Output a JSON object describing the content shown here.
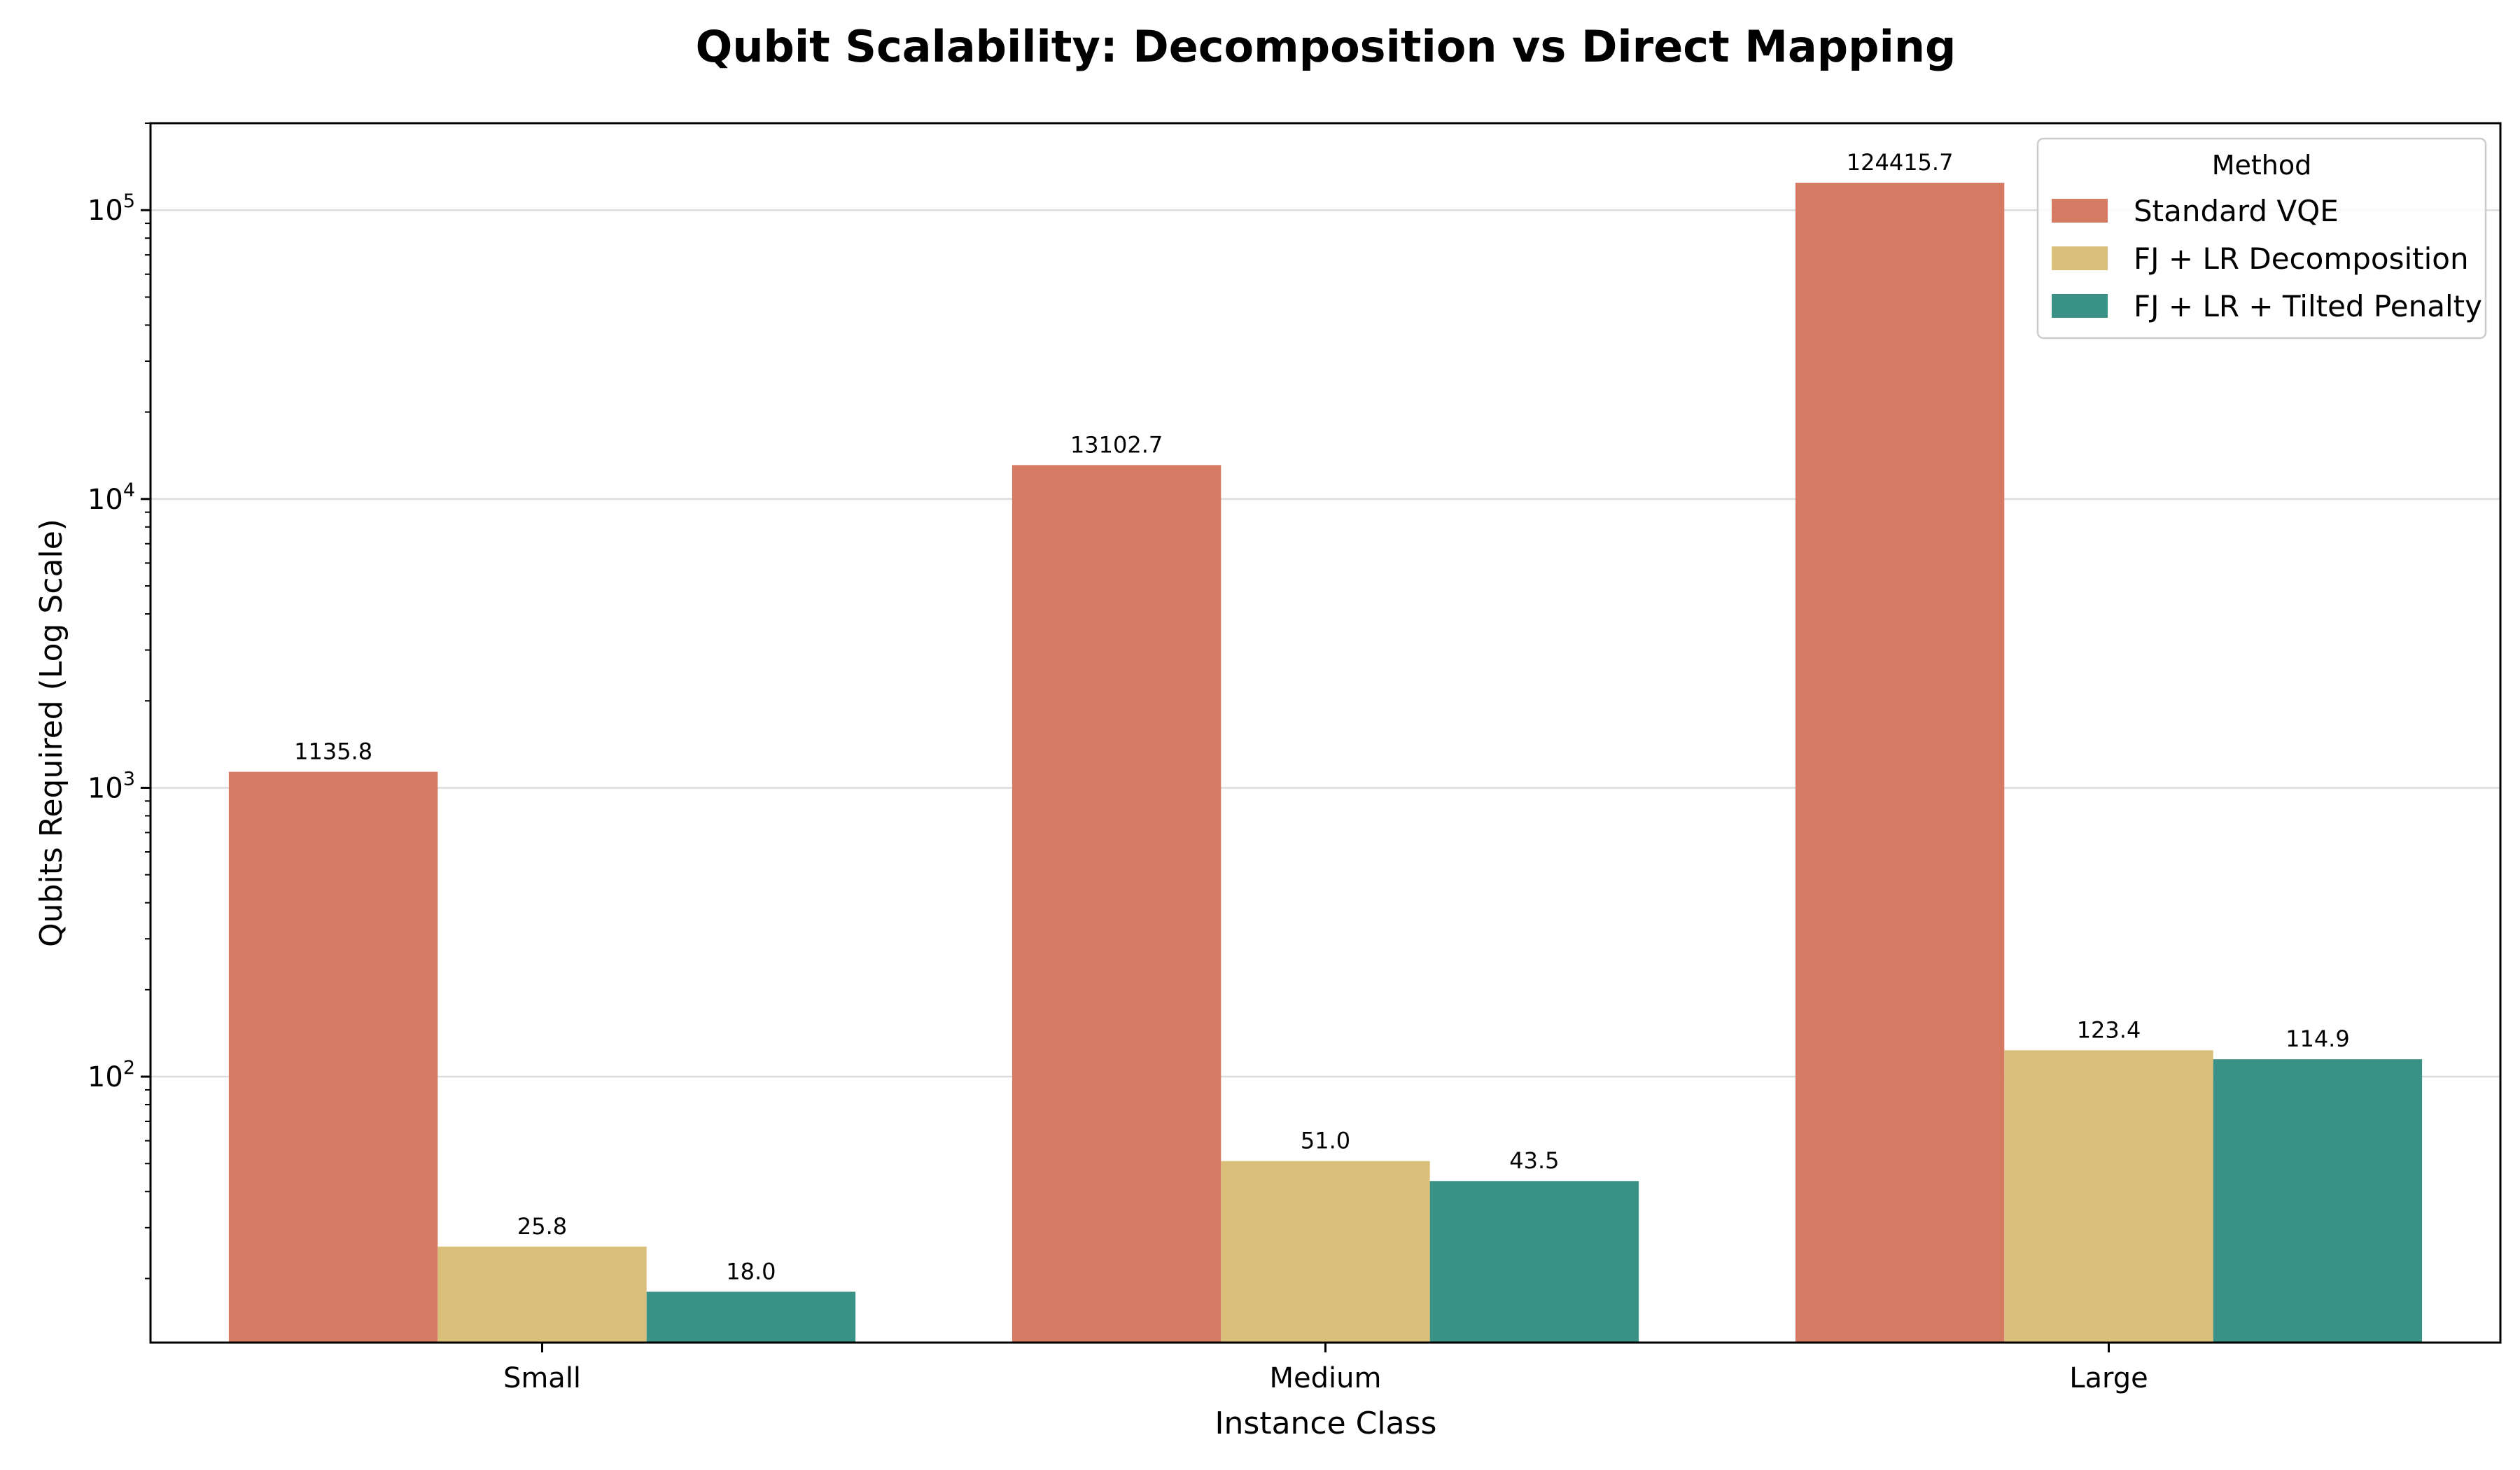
{
  "chart_data": {
    "type": "bar",
    "title": "Qubit Scalability: Decomposition vs Direct Mapping",
    "xlabel": "Instance Class",
    "ylabel": "Qubits Required (Log Scale)",
    "yscale": "log",
    "ylim": [
      12,
      200000
    ],
    "yticks": [
      {
        "value": 100,
        "base": "10",
        "exp": "2"
      },
      {
        "value": 1000,
        "base": "10",
        "exp": "3"
      },
      {
        "value": 10000,
        "base": "10",
        "exp": "4"
      },
      {
        "value": 100000,
        "base": "10",
        "exp": "5"
      }
    ],
    "grid": "y-major",
    "categories": [
      "Small",
      "Medium",
      "Large"
    ],
    "legend": {
      "title": "Method",
      "placement": "top-right"
    },
    "series": [
      {
        "name": "Standard VQE",
        "color": "#d57a63",
        "values": [
          1135.8,
          13102.7,
          124415.7
        ],
        "labels": [
          "1135.8",
          "13102.7",
          "124415.7"
        ]
      },
      {
        "name": "FJ + LR Decomposition",
        "color": "#d9bf7a",
        "values": [
          25.8,
          51.0,
          123.4
        ],
        "labels": [
          "25.8",
          "51.0",
          "123.4"
        ]
      },
      {
        "name": "FJ + LR + Tilted Penalty",
        "color": "#3a9286",
        "values": [
          18.0,
          43.5,
          114.9
        ],
        "labels": [
          "18.0",
          "43.5",
          "114.9"
        ]
      }
    ]
  }
}
